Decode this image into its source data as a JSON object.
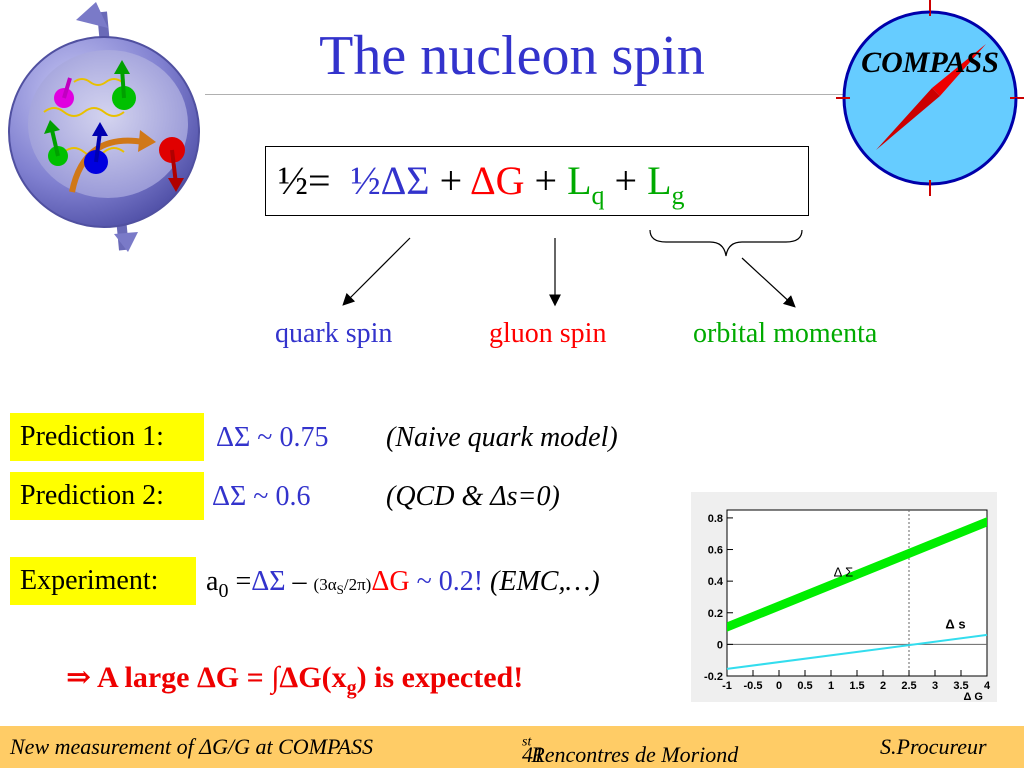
{
  "slide": {
    "title": "The nucleon spin",
    "logo_text": "COMPASS"
  },
  "formula": {
    "lhs": "½=",
    "t1": "½ΔΣ",
    "plus1": "+",
    "t2": "ΔG",
    "plus2": "+",
    "t3": "L",
    "t3_sub": "q",
    "plus3": "+",
    "t4": "L",
    "t4_sub": "g"
  },
  "labels": {
    "quark": "quark spin",
    "gluon": "gluon spin",
    "orbital": "orbital momenta"
  },
  "predictions": [
    {
      "label": "Prediction 1:",
      "value": "ΔΣ ~ 0.75",
      "note": "(Naive quark model)"
    },
    {
      "label": "Prediction 2:",
      "value": "ΔΣ ~ 0.6",
      "note": "(QCD & Δs=0)"
    }
  ],
  "experiment": {
    "label": "Experiment:",
    "a": "a",
    "a_sub": "0",
    "eq": "=",
    "ds": "ΔΣ",
    "minus": "–",
    "factor_open": "(3α",
    "factor_sub": "S",
    "factor_close": "/2π)",
    "dg": "ΔG",
    "approx": "~ 0.2!",
    "note": "(EMC,…)"
  },
  "conclusion": {
    "arrow": "⇒",
    "text_a": "A large ΔG = ∫ΔG(x",
    "text_sub": "g",
    "text_b": ") is expected!"
  },
  "footer": {
    "left": "New measurement of ΔG/G at COMPASS",
    "center_pre": "41",
    "center_sup": "st",
    "center_post": " Rencontres de Moriond",
    "right": "S.Procureur"
  },
  "colors": {
    "title": "#3333cc",
    "quark": "#3333cc",
    "gluon": "#ff0000",
    "orbital": "#00aa00",
    "highlight": "#ffff00",
    "footer": "#ffcc66"
  },
  "chart_data": {
    "type": "line",
    "x": [
      -1,
      -0.5,
      0,
      0.5,
      1,
      1.5,
      2,
      2.5,
      3,
      3.5,
      4
    ],
    "xticks": [
      "-1",
      "-0.5",
      "0",
      "0.5",
      "1",
      "1.5",
      "2",
      "2.5",
      "3",
      "3.5",
      "4"
    ],
    "yticks": [
      "-0.2",
      "0",
      "0.2",
      "0.4",
      "0.6",
      "0.8"
    ],
    "xlim": [
      -1,
      4
    ],
    "ylim": [
      -0.2,
      0.85
    ],
    "xlabel": "Δ G",
    "series": [
      {
        "name": "Δ Σ",
        "x": [
          -1,
          4
        ],
        "y": [
          0.11,
          0.775
        ],
        "color": "#00ee00",
        "band": 0.06
      },
      {
        "name": "Δ s",
        "x": [
          -1,
          4
        ],
        "y": [
          -0.155,
          0.06
        ],
        "color": "#33ddee",
        "band": 0
      }
    ],
    "vline": 2.5,
    "hline": 0
  }
}
